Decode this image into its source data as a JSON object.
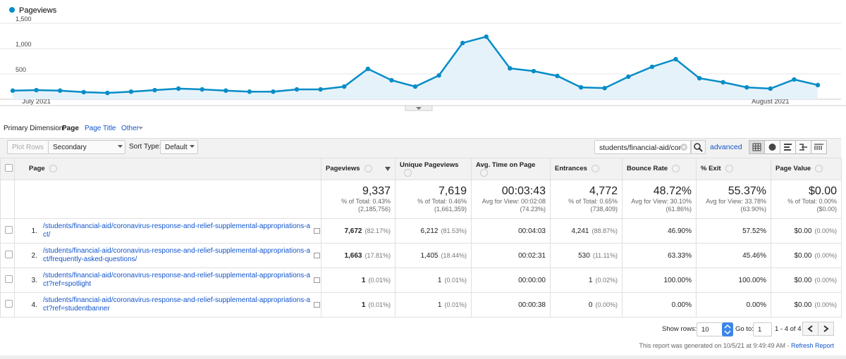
{
  "chart_data": {
    "type": "line",
    "categories": [
      null,
      "July 2021",
      null,
      null,
      null,
      null,
      null,
      null,
      null,
      null,
      null,
      null,
      null,
      null,
      null,
      null,
      null,
      null,
      null,
      null,
      null,
      null,
      null,
      null,
      null,
      null,
      null,
      null,
      null,
      null,
      null,
      null,
      "August 2021",
      null,
      null
    ],
    "series": [
      {
        "name": "Pageviews",
        "color": "#058dc7",
        "values": [
          170,
          180,
          170,
          140,
          125,
          150,
          180,
          210,
          195,
          170,
          150,
          150,
          195,
          195,
          250,
          600,
          375,
          250,
          470,
          1110,
          1235,
          610,
          555,
          460,
          235,
          220,
          445,
          640,
          790,
          415,
          335,
          235,
          210,
          390,
          280
        ]
      }
    ],
    "ylim": [
      0,
      1500
    ],
    "yticks": [
      {
        "value": 500,
        "label": "500"
      },
      {
        "value": 1000,
        "label": "1,000"
      },
      {
        "value": 1500,
        "label": "1,500"
      }
    ],
    "grid": true,
    "area_color": "#e6f2fa"
  },
  "dimension": {
    "label": "Primary Dimension:",
    "options": [
      "Page",
      "Page Title",
      "Other"
    ]
  },
  "toolbar": {
    "plot_rows": "Plot Rows",
    "secondary": "Secondary dimension",
    "sort_label": "Sort Type:",
    "sort_value": "Default",
    "search": "students/financial-aid/coro",
    "advanced": "advanced"
  },
  "table": {
    "headers": [
      "Page",
      "Pageviews",
      "Unique Pageviews",
      "Avg. Time on Page",
      "Entrances",
      "Bounce Rate",
      "% Exit",
      "Page Value"
    ],
    "totals": [
      {
        "value": "9,337",
        "lines": [
          "% of Total: 0.43%",
          "(2,185,756)"
        ]
      },
      {
        "value": "7,619",
        "lines": [
          "% of Total: 0.46%",
          "(1,661,359)"
        ]
      },
      {
        "value": "00:03:43",
        "lines": [
          "Avg for View: 00:02:08",
          "(74.23%)"
        ]
      },
      {
        "value": "4,772",
        "lines": [
          "% of Total: 0.65%",
          "(738,409)"
        ]
      },
      {
        "value": "48.72%",
        "lines": [
          "Avg for View: 30.10%",
          "(61.86%)"
        ]
      },
      {
        "value": "55.37%",
        "lines": [
          "Avg for View: 33.78%",
          "(63.90%)"
        ]
      },
      {
        "value": "$0.00",
        "lines": [
          "% of Total: 0.00%",
          "($0.00)"
        ]
      }
    ],
    "rows": [
      {
        "index": "1.",
        "page": "/students/financial-aid/coronavirus-response-and-relief-supplemental-appropriations-act/",
        "cells": [
          [
            "7,672",
            "(82.17%)"
          ],
          [
            "6,212",
            "(81.53%)"
          ],
          [
            "00:04:03"
          ],
          [
            "4,241",
            "(88.87%)"
          ],
          [
            "46.90%"
          ],
          [
            "57.52%"
          ],
          [
            "$0.00",
            "(0.00%)"
          ]
        ]
      },
      {
        "index": "2.",
        "page": "/students/financial-aid/coronavirus-response-and-relief-supplemental-appropriations-act/frequently-asked-questions/",
        "cells": [
          [
            "1,663",
            "(17.81%)"
          ],
          [
            "1,405",
            "(18.44%)"
          ],
          [
            "00:02:31"
          ],
          [
            "530",
            "(11.11%)"
          ],
          [
            "63.33%"
          ],
          [
            "45.46%"
          ],
          [
            "$0.00",
            "(0.00%)"
          ]
        ]
      },
      {
        "index": "3.",
        "page": "/students/financial-aid/coronavirus-response-and-relief-supplemental-appropriations-act?ref=spotlight",
        "cells": [
          [
            "1",
            "(0.01%)"
          ],
          [
            "1",
            "(0.01%)"
          ],
          [
            "00:00:00"
          ],
          [
            "1",
            "(0.02%)"
          ],
          [
            "100.00%"
          ],
          [
            "100.00%"
          ],
          [
            "$0.00",
            "(0.00%)"
          ]
        ]
      },
      {
        "index": "4.",
        "page": "/students/financial-aid/coronavirus-response-and-relief-supplemental-appropriations-act?ref=studentbanner",
        "cells": [
          [
            "1",
            "(0.01%)"
          ],
          [
            "1",
            "(0.01%)"
          ],
          [
            "00:00:38"
          ],
          [
            "0",
            "(0.00%)"
          ],
          [
            "0.00%"
          ],
          [
            "0.00%"
          ],
          [
            "$0.00",
            "(0.00%)"
          ]
        ]
      }
    ]
  },
  "footer": {
    "show_rows": "Show rows:",
    "rows_value": "10",
    "goto": "Go to:",
    "goto_value": "1",
    "range": "1 - 4 of 4",
    "generated": "This report was generated on 10/5/21 at 9:49:49 AM - ",
    "refresh": "Refresh Report"
  }
}
